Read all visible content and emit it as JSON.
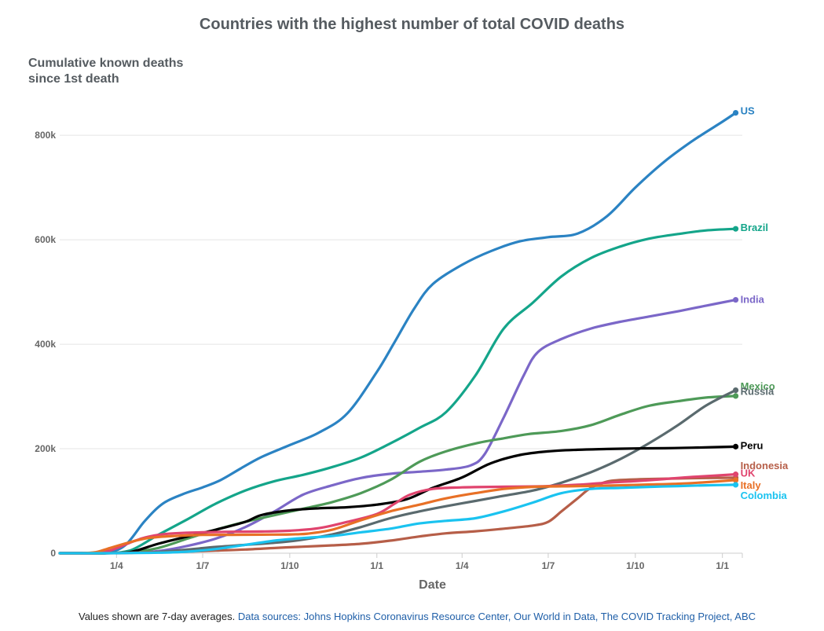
{
  "chart_data": {
    "type": "line",
    "title": "Countries with the highest number of total COVID deaths",
    "ylabel": [
      "Cumulative known deaths",
      "since 1st death"
    ],
    "xlabel": "Date",
    "ylim": [
      0,
      880000
    ],
    "xlim": [
      "2020-02-01",
      "2022-01-22"
    ],
    "grid": true,
    "y_ticks": [
      {
        "value": 0,
        "label": "0"
      },
      {
        "value": 200000,
        "label": "200k"
      },
      {
        "value": 400000,
        "label": "400k"
      },
      {
        "value": 600000,
        "label": "600k"
      },
      {
        "value": 800000,
        "label": "800k"
      }
    ],
    "x_ticks": [
      {
        "date": "2020-04-01",
        "label": "1/4"
      },
      {
        "date": "2020-07-01",
        "label": "1/7"
      },
      {
        "date": "2020-10-01",
        "label": "1/10"
      },
      {
        "date": "2021-01-01",
        "label": "1/1"
      },
      {
        "date": "2021-04-01",
        "label": "1/4"
      },
      {
        "date": "2021-07-01",
        "label": "1/7"
      },
      {
        "date": "2021-10-01",
        "label": "1/10"
      },
      {
        "date": "2022-01-01",
        "label": "1/1"
      }
    ],
    "series": [
      {
        "name": "US",
        "color": "#2b83c3",
        "points": [
          [
            "2020-02-29",
            0
          ],
          [
            "2020-03-20",
            0
          ],
          [
            "2020-04-10",
            15000
          ],
          [
            "2020-05-01",
            62000
          ],
          [
            "2020-05-20",
            95000
          ],
          [
            "2020-06-10",
            113000
          ],
          [
            "2020-07-01",
            126000
          ],
          [
            "2020-07-20",
            140000
          ],
          [
            "2020-08-10",
            162000
          ],
          [
            "2020-09-01",
            184000
          ],
          [
            "2020-10-01",
            207000
          ],
          [
            "2020-11-01",
            231000
          ],
          [
            "2020-12-01",
            268000
          ],
          [
            "2021-01-01",
            347000
          ],
          [
            "2021-01-20",
            405000
          ],
          [
            "2021-02-10",
            470000
          ],
          [
            "2021-03-01",
            515000
          ],
          [
            "2021-04-01",
            552000
          ],
          [
            "2021-05-01",
            578000
          ],
          [
            "2021-06-01",
            597000
          ],
          [
            "2021-07-01",
            605000
          ],
          [
            "2021-08-01",
            612000
          ],
          [
            "2021-09-01",
            645000
          ],
          [
            "2021-10-01",
            700000
          ],
          [
            "2021-11-01",
            750000
          ],
          [
            "2021-12-01",
            790000
          ],
          [
            "2022-01-01",
            826000
          ],
          [
            "2022-01-15",
            843000
          ]
        ]
      },
      {
        "name": "Brazil",
        "color": "#14a58a",
        "points": [
          [
            "2020-03-17",
            0
          ],
          [
            "2020-04-15",
            5000
          ],
          [
            "2020-05-15",
            35000
          ],
          [
            "2020-06-15",
            65000
          ],
          [
            "2020-07-15",
            95000
          ],
          [
            "2020-08-15",
            120000
          ],
          [
            "2020-09-15",
            138000
          ],
          [
            "2020-10-15",
            150000
          ],
          [
            "2020-11-15",
            165000
          ],
          [
            "2020-12-15",
            183000
          ],
          [
            "2021-01-15",
            210000
          ],
          [
            "2021-02-15",
            240000
          ],
          [
            "2021-03-15",
            270000
          ],
          [
            "2021-04-15",
            340000
          ],
          [
            "2021-05-15",
            430000
          ],
          [
            "2021-06-15",
            480000
          ],
          [
            "2021-07-15",
            530000
          ],
          [
            "2021-08-15",
            565000
          ],
          [
            "2021-09-15",
            587000
          ],
          [
            "2021-10-15",
            602000
          ],
          [
            "2021-11-15",
            611000
          ],
          [
            "2021-12-15",
            618000
          ],
          [
            "2022-01-15",
            621000
          ]
        ]
      },
      {
        "name": "India",
        "color": "#7b67c8",
        "points": [
          [
            "2020-03-12",
            0
          ],
          [
            "2020-04-15",
            1000
          ],
          [
            "2020-05-15",
            4000
          ],
          [
            "2020-06-15",
            14000
          ],
          [
            "2020-07-15",
            28000
          ],
          [
            "2020-08-15",
            50000
          ],
          [
            "2020-09-15",
            80000
          ],
          [
            "2020-10-15",
            112000
          ],
          [
            "2020-11-15",
            130000
          ],
          [
            "2020-12-15",
            144000
          ],
          [
            "2021-01-15",
            152000
          ],
          [
            "2021-02-15",
            156000
          ],
          [
            "2021-03-15",
            160000
          ],
          [
            "2021-04-10",
            168000
          ],
          [
            "2021-04-25",
            190000
          ],
          [
            "2021-05-15",
            260000
          ],
          [
            "2021-06-05",
            340000
          ],
          [
            "2021-06-20",
            385000
          ],
          [
            "2021-07-15",
            410000
          ],
          [
            "2021-08-15",
            430000
          ],
          [
            "2021-09-15",
            443000
          ],
          [
            "2021-10-15",
            453000
          ],
          [
            "2021-11-15",
            463000
          ],
          [
            "2021-12-15",
            474000
          ],
          [
            "2022-01-15",
            485000
          ]
        ]
      },
      {
        "name": "Mexico",
        "color": "#4e9a58",
        "points": [
          [
            "2020-03-18",
            0
          ],
          [
            "2020-04-15",
            2000
          ],
          [
            "2020-05-15",
            10000
          ],
          [
            "2020-06-15",
            28000
          ],
          [
            "2020-07-15",
            45000
          ],
          [
            "2020-08-15",
            60000
          ],
          [
            "2020-09-15",
            73000
          ],
          [
            "2020-10-15",
            85000
          ],
          [
            "2020-11-15",
            98000
          ],
          [
            "2020-12-15",
            115000
          ],
          [
            "2021-01-15",
            140000
          ],
          [
            "2021-02-15",
            175000
          ],
          [
            "2021-03-15",
            195000
          ],
          [
            "2021-04-15",
            210000
          ],
          [
            "2021-05-15",
            220000
          ],
          [
            "2021-06-10",
            228000
          ],
          [
            "2021-07-15",
            234000
          ],
          [
            "2021-08-15",
            245000
          ],
          [
            "2021-09-15",
            265000
          ],
          [
            "2021-10-15",
            282000
          ],
          [
            "2021-11-15",
            291000
          ],
          [
            "2021-12-15",
            298000
          ],
          [
            "2022-01-15",
            301000
          ]
        ]
      },
      {
        "name": "Russia",
        "color": "#5a6a6e",
        "points": [
          [
            "2020-03-25",
            0
          ],
          [
            "2020-04-15",
            500
          ],
          [
            "2020-05-15",
            2500
          ],
          [
            "2020-06-15",
            7000
          ],
          [
            "2020-07-15",
            12000
          ],
          [
            "2020-08-15",
            16000
          ],
          [
            "2020-09-15",
            20000
          ],
          [
            "2020-10-15",
            26000
          ],
          [
            "2020-11-15",
            36000
          ],
          [
            "2020-12-15",
            50000
          ],
          [
            "2021-01-15",
            67000
          ],
          [
            "2021-02-15",
            80000
          ],
          [
            "2021-03-15",
            90000
          ],
          [
            "2021-04-15",
            100000
          ],
          [
            "2021-05-15",
            110000
          ],
          [
            "2021-06-15",
            120000
          ],
          [
            "2021-07-15",
            135000
          ],
          [
            "2021-08-15",
            155000
          ],
          [
            "2021-09-15",
            180000
          ],
          [
            "2021-10-15",
            210000
          ],
          [
            "2021-11-15",
            245000
          ],
          [
            "2021-12-15",
            283000
          ],
          [
            "2022-01-15",
            312000
          ]
        ]
      },
      {
        "name": "Peru",
        "color": "#000000",
        "points": [
          [
            "2020-03-20",
            0
          ],
          [
            "2020-04-15",
            2000
          ],
          [
            "2020-05-15",
            18000
          ],
          [
            "2020-06-15",
            32000
          ],
          [
            "2020-07-15",
            45000
          ],
          [
            "2020-08-15",
            60000
          ],
          [
            "2020-09-01",
            73000
          ],
          [
            "2020-10-01",
            82000
          ],
          [
            "2020-11-01",
            86000
          ],
          [
            "2020-12-01",
            88000
          ],
          [
            "2021-01-01",
            93000
          ],
          [
            "2021-02-01",
            103000
          ],
          [
            "2021-03-01",
            125000
          ],
          [
            "2021-04-01",
            145000
          ],
          [
            "2021-05-01",
            172000
          ],
          [
            "2021-06-01",
            188000
          ],
          [
            "2021-07-01",
            195000
          ],
          [
            "2021-08-01",
            198000
          ],
          [
            "2021-09-01",
            199500
          ],
          [
            "2021-10-01",
            200500
          ],
          [
            "2021-11-01",
            201000
          ],
          [
            "2021-12-01",
            202000
          ],
          [
            "2022-01-15",
            204000
          ]
        ]
      },
      {
        "name": "Indonesia",
        "color": "#b65e48",
        "points": [
          [
            "2020-03-11",
            0
          ],
          [
            "2020-04-15",
            1000
          ],
          [
            "2020-05-15",
            1500
          ],
          [
            "2020-06-15",
            3000
          ],
          [
            "2020-07-15",
            5000
          ],
          [
            "2020-08-15",
            7000
          ],
          [
            "2020-09-15",
            10000
          ],
          [
            "2020-10-15",
            12500
          ],
          [
            "2020-11-15",
            15000
          ],
          [
            "2020-12-15",
            18000
          ],
          [
            "2021-01-15",
            24000
          ],
          [
            "2021-02-15",
            32000
          ],
          [
            "2021-03-15",
            38000
          ],
          [
            "2021-04-15",
            42000
          ],
          [
            "2021-05-15",
            47000
          ],
          [
            "2021-06-15",
            53000
          ],
          [
            "2021-07-01",
            60000
          ],
          [
            "2021-07-15",
            80000
          ],
          [
            "2021-08-01",
            105000
          ],
          [
            "2021-08-15",
            125000
          ],
          [
            "2021-09-01",
            137000
          ],
          [
            "2021-09-15",
            140000
          ],
          [
            "2021-10-15",
            142000
          ],
          [
            "2021-11-15",
            143000
          ],
          [
            "2021-12-15",
            144000
          ],
          [
            "2022-01-15",
            144500
          ]
        ]
      },
      {
        "name": "UK",
        "color": "#e0446e",
        "points": [
          [
            "2020-03-05",
            0
          ],
          [
            "2020-03-25",
            5000
          ],
          [
            "2020-04-15",
            20000
          ],
          [
            "2020-05-01",
            30000
          ],
          [
            "2020-05-15",
            35000
          ],
          [
            "2020-06-01",
            38000
          ],
          [
            "2020-07-01",
            40000
          ],
          [
            "2020-08-01",
            41000
          ],
          [
            "2020-09-01",
            41500
          ],
          [
            "2020-10-01",
            43000
          ],
          [
            "2020-11-01",
            48000
          ],
          [
            "2020-12-01",
            60000
          ],
          [
            "2021-01-01",
            75000
          ],
          [
            "2021-01-20",
            95000
          ],
          [
            "2021-02-05",
            112000
          ],
          [
            "2021-03-01",
            123000
          ],
          [
            "2021-04-01",
            126000
          ],
          [
            "2021-05-01",
            127000
          ],
          [
            "2021-06-01",
            127500
          ],
          [
            "2021-07-01",
            128500
          ],
          [
            "2021-08-01",
            131000
          ],
          [
            "2021-09-01",
            135000
          ],
          [
            "2021-10-01",
            138000
          ],
          [
            "2021-11-01",
            142000
          ],
          [
            "2021-12-01",
            146000
          ],
          [
            "2022-01-15",
            151000
          ]
        ]
      },
      {
        "name": "Italy",
        "color": "#e87026",
        "points": [
          [
            "2020-02-21",
            0
          ],
          [
            "2020-03-10",
            2000
          ],
          [
            "2020-03-25",
            10000
          ],
          [
            "2020-04-15",
            21000
          ],
          [
            "2020-05-01",
            28000
          ],
          [
            "2020-05-15",
            31000
          ],
          [
            "2020-06-01",
            33000
          ],
          [
            "2020-07-01",
            35000
          ],
          [
            "2020-08-01",
            35200
          ],
          [
            "2020-09-01",
            35500
          ],
          [
            "2020-10-01",
            36000
          ],
          [
            "2020-10-20",
            37500
          ],
          [
            "2020-11-15",
            45000
          ],
          [
            "2020-12-15",
            63000
          ],
          [
            "2021-01-15",
            80000
          ],
          [
            "2021-02-15",
            93000
          ],
          [
            "2021-03-15",
            105000
          ],
          [
            "2021-04-15",
            115000
          ],
          [
            "2021-05-15",
            123000
          ],
          [
            "2021-06-15",
            127000
          ],
          [
            "2021-07-15",
            128000
          ],
          [
            "2021-08-15",
            128700
          ],
          [
            "2021-09-15",
            130000
          ],
          [
            "2021-10-15",
            131500
          ],
          [
            "2021-11-15",
            133000
          ],
          [
            "2021-12-15",
            136000
          ],
          [
            "2022-01-15",
            140000
          ]
        ]
      },
      {
        "name": "Colombia",
        "color": "#1ac3f0",
        "points": [
          [
            "2020-03-21",
            0
          ],
          [
            "2020-04-15",
            500
          ],
          [
            "2020-05-15",
            1000
          ],
          [
            "2020-06-15",
            3000
          ],
          [
            "2020-07-15",
            8000
          ],
          [
            "2020-08-15",
            16000
          ],
          [
            "2020-09-15",
            24000
          ],
          [
            "2020-10-15",
            29000
          ],
          [
            "2020-11-15",
            33000
          ],
          [
            "2020-12-15",
            40000
          ],
          [
            "2021-01-15",
            47000
          ],
          [
            "2021-02-15",
            57000
          ],
          [
            "2021-03-15",
            62000
          ],
          [
            "2021-04-15",
            67000
          ],
          [
            "2021-05-15",
            80000
          ],
          [
            "2021-06-15",
            97000
          ],
          [
            "2021-07-15",
            115000
          ],
          [
            "2021-08-15",
            123000
          ],
          [
            "2021-09-15",
            125000
          ],
          [
            "2021-10-15",
            127000
          ],
          [
            "2021-11-15",
            128500
          ],
          [
            "2021-12-15",
            130000
          ],
          [
            "2022-01-15",
            131000
          ]
        ]
      }
    ]
  },
  "footer": {
    "note": "Values shown are 7-day averages.",
    "sources": "Data sources: Johns Hopkins Coronavirus Resource Center, Our World in Data, The COVID Tracking Project, ABC"
  }
}
